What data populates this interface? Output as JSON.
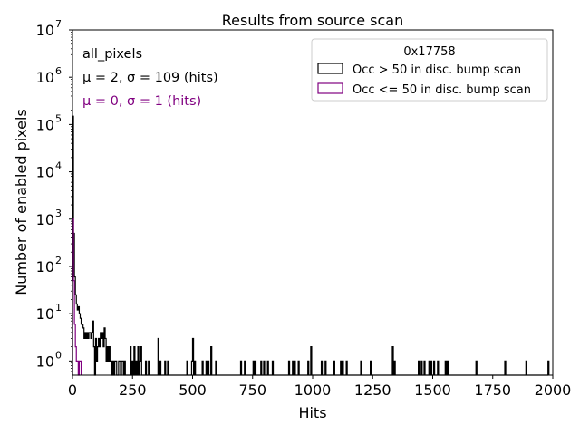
{
  "chart_data": {
    "type": "step-histogram",
    "title": "Results from source scan",
    "xlabel": "Hits",
    "ylabel": "Number of enabled pixels",
    "xlim": [
      0,
      2000
    ],
    "ylim_log10": [
      -0.3,
      7.0
    ],
    "yscale": "log",
    "x_ticks": [
      0,
      250,
      500,
      750,
      1000,
      1250,
      1500,
      1750,
      2000
    ],
    "x_tick_labels": [
      "0",
      "250",
      "500",
      "750",
      "1000",
      "1250",
      "1500",
      "1750",
      "2000"
    ],
    "y_ticks_exp": [
      0,
      1,
      2,
      3,
      4,
      5,
      6,
      7
    ],
    "y_tick_labels": [
      "10",
      "10",
      "10",
      "10",
      "10",
      "10",
      "10",
      "10"
    ],
    "y_tick_exponents": [
      "0",
      "1",
      "2",
      "3",
      "4",
      "5",
      "6",
      "7"
    ],
    "legend": {
      "title": "0x17758",
      "location": "upper right",
      "entries": [
        {
          "label": "Occ > 50 in disc. bump scan",
          "color": "#000000"
        },
        {
          "label": "Occ <= 50 in disc. bump scan",
          "color": "#800080"
        }
      ]
    },
    "annotations": [
      {
        "text": "all_pixels",
        "color": "#000000"
      },
      {
        "text": "μ = 2, σ = 109 (hits)",
        "color": "#000000"
      },
      {
        "text": "μ = 0, σ = 1 (hits)",
        "color": "#800080"
      }
    ],
    "bin_width": 4,
    "series": [
      {
        "name": "Occ > 50 in disc. bump scan",
        "color": "#000000",
        "bins": [
          [
            0,
            150000
          ],
          [
            4,
            500
          ],
          [
            8,
            60
          ],
          [
            12,
            25
          ],
          [
            16,
            16
          ],
          [
            20,
            12
          ],
          [
            24,
            14
          ],
          [
            28,
            10
          ],
          [
            32,
            8
          ],
          [
            36,
            6
          ],
          [
            40,
            6
          ],
          [
            44,
            5
          ],
          [
            48,
            3
          ],
          [
            52,
            4
          ],
          [
            56,
            3
          ],
          [
            60,
            4
          ],
          [
            64,
            3
          ],
          [
            68,
            4
          ],
          [
            72,
            4
          ],
          [
            76,
            3
          ],
          [
            80,
            4
          ],
          [
            84,
            7
          ],
          [
            88,
            2
          ],
          [
            96,
            3
          ],
          [
            100,
            1
          ],
          [
            104,
            2
          ],
          [
            108,
            3
          ],
          [
            112,
            2
          ],
          [
            116,
            4
          ],
          [
            120,
            3
          ],
          [
            124,
            4
          ],
          [
            128,
            2
          ],
          [
            132,
            5
          ],
          [
            136,
            3
          ],
          [
            140,
            1
          ],
          [
            144,
            2
          ],
          [
            148,
            1
          ],
          [
            152,
            2
          ],
          [
            156,
            1
          ],
          [
            160,
            1
          ],
          [
            168,
            1
          ],
          [
            176,
            1
          ],
          [
            180,
            1
          ],
          [
            192,
            1
          ],
          [
            196,
            1
          ],
          [
            204,
            1
          ],
          [
            208,
            1
          ],
          [
            216,
            1
          ],
          [
            240,
            2
          ],
          [
            248,
            1
          ],
          [
            256,
            2
          ],
          [
            264,
            1
          ],
          [
            272,
            2
          ],
          [
            280,
            1
          ],
          [
            284,
            2
          ],
          [
            304,
            1
          ],
          [
            316,
            1
          ],
          [
            356,
            3
          ],
          [
            364,
            1
          ],
          [
            384,
            1
          ],
          [
            396,
            1
          ],
          [
            476,
            1
          ],
          [
            496,
            1
          ],
          [
            500,
            3
          ],
          [
            508,
            1
          ],
          [
            540,
            1
          ],
          [
            556,
            1
          ],
          [
            564,
            1
          ],
          [
            576,
            2
          ],
          [
            596,
            1
          ],
          [
            700,
            1
          ],
          [
            716,
            1
          ],
          [
            752,
            1
          ],
          [
            760,
            1
          ],
          [
            784,
            1
          ],
          [
            796,
            1
          ],
          [
            812,
            1
          ],
          [
            832,
            1
          ],
          [
            900,
            1
          ],
          [
            916,
            1
          ],
          [
            924,
            1
          ],
          [
            940,
            1
          ],
          [
            980,
            1
          ],
          [
            992,
            2
          ],
          [
            1036,
            1
          ],
          [
            1052,
            1
          ],
          [
            1088,
            1
          ],
          [
            1116,
            1
          ],
          [
            1124,
            1
          ],
          [
            1140,
            1
          ],
          [
            1200,
            1
          ],
          [
            1240,
            1
          ],
          [
            1332,
            2
          ],
          [
            1340,
            1
          ],
          [
            1440,
            1
          ],
          [
            1452,
            1
          ],
          [
            1464,
            1
          ],
          [
            1484,
            1
          ],
          [
            1492,
            1
          ],
          [
            1504,
            1
          ],
          [
            1520,
            1
          ],
          [
            1552,
            1
          ],
          [
            1560,
            1
          ],
          [
            1680,
            1
          ],
          [
            1800,
            1
          ],
          [
            1888,
            1
          ],
          [
            1980,
            1
          ]
        ]
      },
      {
        "name": "Occ <= 50 in disc. bump scan",
        "color": "#800080",
        "bins": [
          [
            0,
            1000
          ],
          [
            4,
            50
          ],
          [
            8,
            6
          ],
          [
            12,
            2
          ],
          [
            16,
            1
          ],
          [
            20,
            1
          ],
          [
            28,
            1
          ],
          [
            32,
            1
          ]
        ]
      }
    ]
  }
}
